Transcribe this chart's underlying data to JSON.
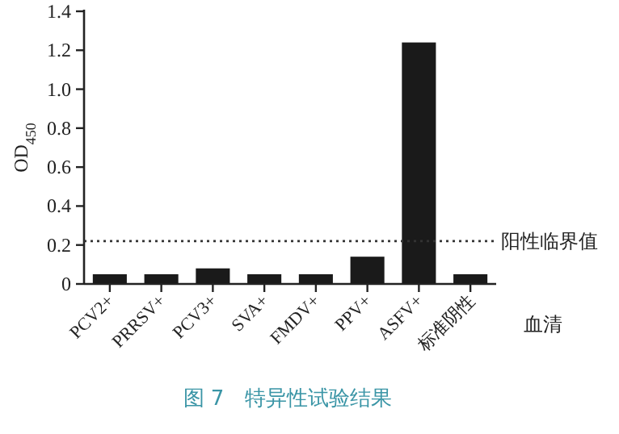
{
  "chart_data": {
    "type": "bar",
    "title": "图 7　特异性试验结果",
    "xlabel": "血清",
    "ylabel": "OD$_{450}$",
    "categories": [
      "PCV2+",
      "PRRSV+",
      "PCV3+",
      "SVA+",
      "FMDV+",
      "PPV+",
      "ASFV+",
      "标准阴性"
    ],
    "values": [
      0.05,
      0.05,
      0.08,
      0.05,
      0.05,
      0.14,
      1.24,
      0.05
    ],
    "color": "#1a1a1a",
    "ylim": [
      0,
      1.4
    ],
    "yticks": [
      0,
      0.2,
      0.4,
      0.6,
      0.8,
      {
        "value": 1,
        "label": "1.0"
      },
      1.2,
      1.4
    ],
    "ref_lines": [
      {
        "axis": "y",
        "value": 0.22,
        "label": "阳性临界值",
        "line_style": "dotted",
        "color": "#333333"
      }
    ]
  }
}
